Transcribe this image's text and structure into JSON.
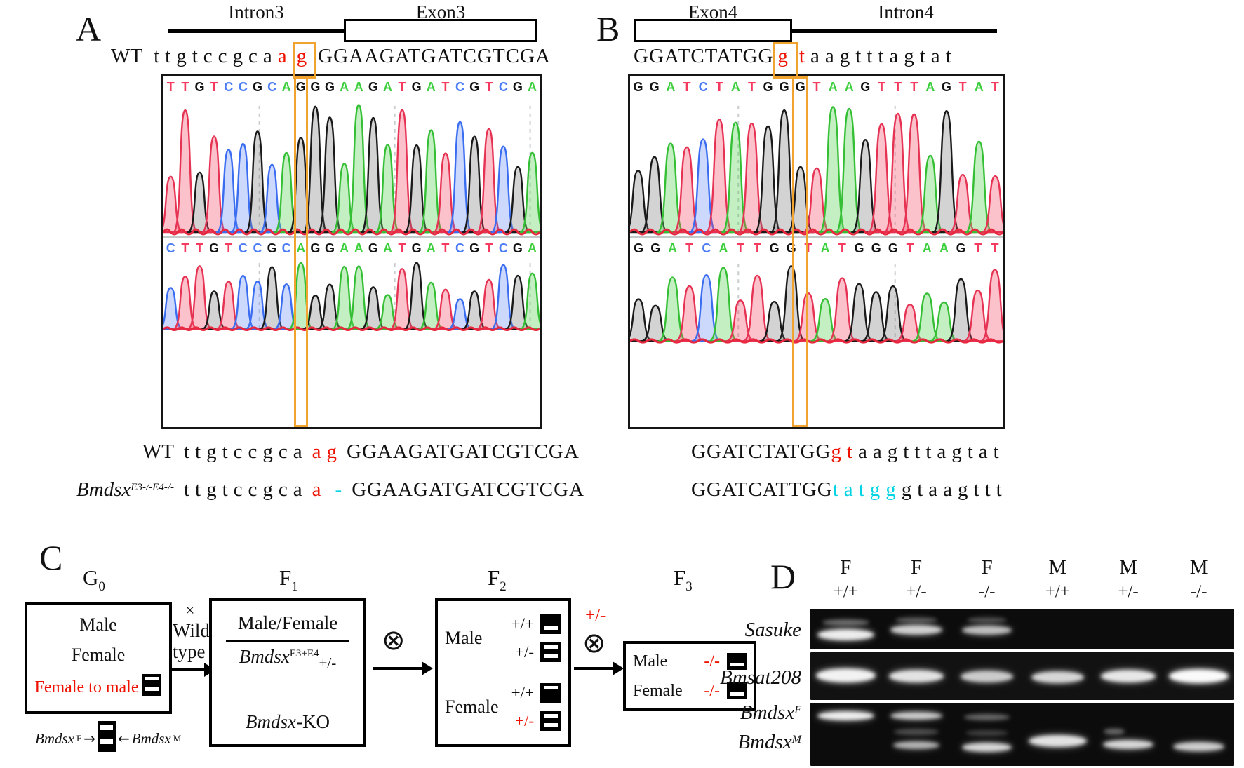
{
  "colors": {
    "red": "#ee1100",
    "cyan": "#00d4e4",
    "highlight_orange": "#f0a32f",
    "base_A": "#3ecf3e",
    "base_T": "#f43a5e",
    "base_G": "#121212",
    "base_C": "#4b7cf5"
  },
  "panelA": {
    "label": "A",
    "intron": "Intron3",
    "exon": "Exon3",
    "wt": "WT",
    "header_seq": [
      {
        "t": "ttgtccgca",
        "ls": "lo"
      },
      {
        "t": "a",
        "c": "red",
        "ls": "lo"
      },
      {
        "t": "g",
        "c": "red",
        "ls": "lo",
        "box": true
      },
      {
        "t": "GGAAGATGATCGTCGA",
        "ls": "up"
      }
    ],
    "chrom": {
      "rows": [
        "TTGTCCGCAGGGAAGATGATCGTCGA",
        "CTTGTCCGCAGGAAGATGATCGTCGA"
      ],
      "highlight_index": 9,
      "guides": [
        0.255,
        0.615,
        0.975
      ]
    },
    "align": [
      {
        "name": "WT",
        "sup": "",
        "italic": false,
        "segs": [
          {
            "t": "ttgtccgca",
            "ls": "lo"
          },
          {
            "t": "ag",
            "c": "red",
            "ls": "lo",
            "gap": true
          },
          {
            "t": "GGAAGATGATCGTCGA",
            "ls": "up"
          }
        ]
      },
      {
        "name": "Bmdsx",
        "sup": "E3-/-E4-/-",
        "italic": true,
        "segs": [
          {
            "t": "ttgtccgca",
            "ls": "lo"
          },
          {
            "t": "a",
            "c": "red",
            "ls": "lo",
            "gap": true
          },
          {
            "t": "-",
            "c": "cyan",
            "ls": "lo",
            "gap": true
          },
          {
            "t": "GGAAGATGATCGTCGA",
            "ls": "up"
          }
        ]
      }
    ]
  },
  "panelB": {
    "label": "B",
    "exon": "Exon4",
    "intron": "Intron4",
    "header_seq": [
      {
        "t": "GGATCTATGG",
        "ls": "up"
      },
      {
        "t": "g",
        "c": "red",
        "ls": "lo",
        "box": true
      },
      {
        "t": "t",
        "c": "red",
        "ls": "lo"
      },
      {
        "t": "aagtttagtat",
        "ls": "lo"
      }
    ],
    "chrom": {
      "rows": [
        "GGATCTATGGGTAAGTTTAGTAT",
        "GGATCATTGGTATGGGTAAGTT"
      ],
      "highlight_index": 10,
      "guides": [
        0.29,
        0.71
      ]
    },
    "align": [
      {
        "name": "",
        "sup": "",
        "italic": false,
        "segs": [
          {
            "t": "GGATCTATGG",
            "ls": "up"
          },
          {
            "t": "gt",
            "c": "red",
            "ls": "lo"
          },
          {
            "t": "aagtttagtat",
            "ls": "lo"
          }
        ]
      },
      {
        "name": "",
        "sup": "",
        "italic": false,
        "segs": [
          {
            "t": "GGATCATTGG",
            "ls": "up"
          },
          {
            "t": "tatgg",
            "c": "cyan",
            "ls": "lo"
          },
          {
            "t": "gtaagttt",
            "ls": "lo"
          }
        ]
      }
    ]
  },
  "panelC": {
    "label": "C",
    "gen_labels": [
      {
        "main": "G",
        "sub": "0"
      },
      {
        "main": "F",
        "sub": "1"
      },
      {
        "main": "F",
        "sub": "2"
      },
      {
        "main": "F",
        "sub": "3"
      }
    ],
    "g0": {
      "male": "Male",
      "female": "Female",
      "f2m": "Female to male",
      "f2m_icon": "FM"
    },
    "legend": {
      "left_gene": "Bmdsx",
      "left_sup": "F",
      "arrow_r": "→",
      "icon": "FM",
      "arrow_l": "←",
      "right_gene": "Bmdsx",
      "right_sup": "M"
    },
    "cross1": {
      "x": "×",
      "l1": "Wild",
      "l2": "type"
    },
    "f1": {
      "num": "Male/Female",
      "den_gene": "Bmdsx",
      "den_sup": "E3+E4",
      "den_sub": "+/-",
      "ko_gene": "Bmdsx",
      "ko_suffix": "-KO"
    },
    "cross_sym": "⊗",
    "f2": {
      "groups": [
        {
          "label": "Male",
          "rows": [
            {
              "g": "+/+",
              "c": "k",
              "icon": "M"
            },
            {
              "g": "+/-",
              "c": "k",
              "icon": "FM"
            }
          ]
        },
        {
          "label": "Female",
          "rows": [
            {
              "g": "+/+",
              "c": "k",
              "icon": "F"
            },
            {
              "g": "+/-",
              "c": "red",
              "icon": "FM"
            }
          ]
        }
      ]
    },
    "cross3_label": "+/-",
    "f3": {
      "rows": [
        {
          "label": "Male",
          "g": "-/-",
          "c": "red",
          "icon": "M"
        },
        {
          "label": "Female",
          "g": "-/-",
          "c": "red",
          "icon": "M"
        }
      ]
    }
  },
  "panelD": {
    "label": "D",
    "columns": [
      {
        "sex": "F",
        "gt": "+/+"
      },
      {
        "sex": "F",
        "gt": "+/-"
      },
      {
        "sex": "F",
        "gt": "-/-"
      },
      {
        "sex": "M",
        "gt": "+/+"
      },
      {
        "sex": "M",
        "gt": "+/-"
      },
      {
        "sex": "M",
        "gt": "-/-"
      }
    ],
    "row_labels": [
      {
        "gene": "Sasuke",
        "sup": ""
      },
      {
        "gene": "Bmsat208",
        "sup": ""
      },
      {
        "gene": "Bmdsx",
        "sup": "F"
      },
      {
        "gene": "Bmdsx",
        "sup": "M"
      }
    ],
    "gels": [
      {
        "name": "Sasuke",
        "bands": [
          {
            "lane": 0,
            "y": 0.64,
            "i": 0.95,
            "w": 0.8,
            "h": 16
          },
          {
            "lane": 0,
            "y": 0.34,
            "i": 0.4,
            "w": 0.66,
            "h": 9
          },
          {
            "lane": 1,
            "y": 0.52,
            "i": 0.82,
            "w": 0.74,
            "h": 14
          },
          {
            "lane": 1,
            "y": 0.27,
            "i": 0.32,
            "w": 0.6,
            "h": 8
          },
          {
            "lane": 2,
            "y": 0.52,
            "i": 0.75,
            "w": 0.7,
            "h": 13
          },
          {
            "lane": 2,
            "y": 0.27,
            "i": 0.28,
            "w": 0.56,
            "h": 8
          }
        ]
      },
      {
        "name": "Bmsat208",
        "bands": [
          {
            "lane": 0,
            "y": 0.48,
            "i": 0.97,
            "w": 0.84,
            "h": 20
          },
          {
            "lane": 1,
            "y": 0.5,
            "i": 0.9,
            "w": 0.78,
            "h": 18
          },
          {
            "lane": 2,
            "y": 0.5,
            "i": 0.8,
            "w": 0.74,
            "h": 17
          },
          {
            "lane": 3,
            "y": 0.52,
            "i": 0.85,
            "w": 0.74,
            "h": 17
          },
          {
            "lane": 4,
            "y": 0.5,
            "i": 0.92,
            "w": 0.78,
            "h": 18
          },
          {
            "lane": 5,
            "y": 0.5,
            "i": 1.0,
            "w": 0.84,
            "h": 20
          }
        ]
      },
      {
        "name": "Bmdsx",
        "bands": [
          {
            "lane": 0,
            "y": 0.2,
            "i": 0.95,
            "w": 0.8,
            "h": 13
          },
          {
            "lane": 1,
            "y": 0.2,
            "i": 0.8,
            "w": 0.74,
            "h": 11
          },
          {
            "lane": 1,
            "y": 0.46,
            "i": 0.28,
            "w": 0.64,
            "h": 9
          },
          {
            "lane": 1,
            "y": 0.67,
            "i": 0.7,
            "w": 0.66,
            "h": 11
          },
          {
            "lane": 2,
            "y": 0.23,
            "i": 0.38,
            "w": 0.64,
            "h": 9
          },
          {
            "lane": 2,
            "y": 0.48,
            "i": 0.22,
            "w": 0.6,
            "h": 8
          },
          {
            "lane": 2,
            "y": 0.7,
            "i": 0.85,
            "w": 0.7,
            "h": 13
          },
          {
            "lane": 3,
            "y": 0.6,
            "i": 0.9,
            "w": 0.82,
            "h": 17
          },
          {
            "lane": 4,
            "y": 0.45,
            "i": 0.4,
            "w": 0.3,
            "h": 8,
            "dx": -0.2
          },
          {
            "lane": 4,
            "y": 0.66,
            "i": 0.85,
            "w": 0.72,
            "h": 13
          },
          {
            "lane": 5,
            "y": 0.69,
            "i": 0.82,
            "w": 0.72,
            "h": 13
          }
        ]
      }
    ]
  }
}
